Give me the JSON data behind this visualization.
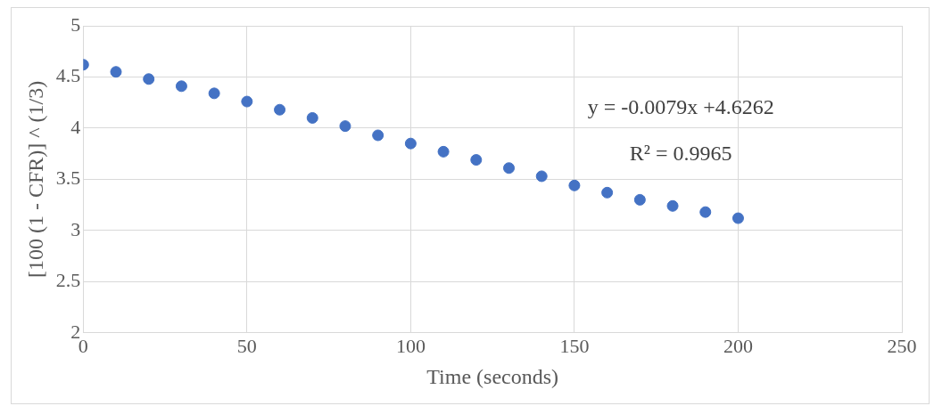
{
  "chart_data": {
    "type": "scatter",
    "xlabel": "Time (seconds)",
    "ylabel": "[100 (1 - CFR)] ^ (1/3)",
    "x": [
      0,
      10,
      20,
      30,
      40,
      50,
      60,
      70,
      80,
      90,
      100,
      110,
      120,
      130,
      140,
      150,
      160,
      170,
      180,
      190,
      200
    ],
    "series": [
      {
        "color": "#4472c4",
        "values": [
          4.62,
          4.55,
          4.48,
          4.41,
          4.34,
          4.26,
          4.18,
          4.1,
          4.02,
          3.93,
          3.85,
          3.77,
          3.69,
          3.61,
          3.53,
          3.44,
          3.37,
          3.3,
          3.24,
          3.18,
          3.12
        ]
      }
    ],
    "xlim": [
      0,
      250
    ],
    "xticks": [
      0,
      50,
      100,
      150,
      200,
      250
    ],
    "ylim": [
      2,
      5
    ],
    "yticks": [
      2,
      2.5,
      3,
      3.5,
      4,
      4.5,
      5
    ],
    "annotations": [
      "y = -0.0079x +4.6262",
      "R² = 0.9965"
    ],
    "grid": true,
    "legend": false,
    "marker": "circle"
  }
}
